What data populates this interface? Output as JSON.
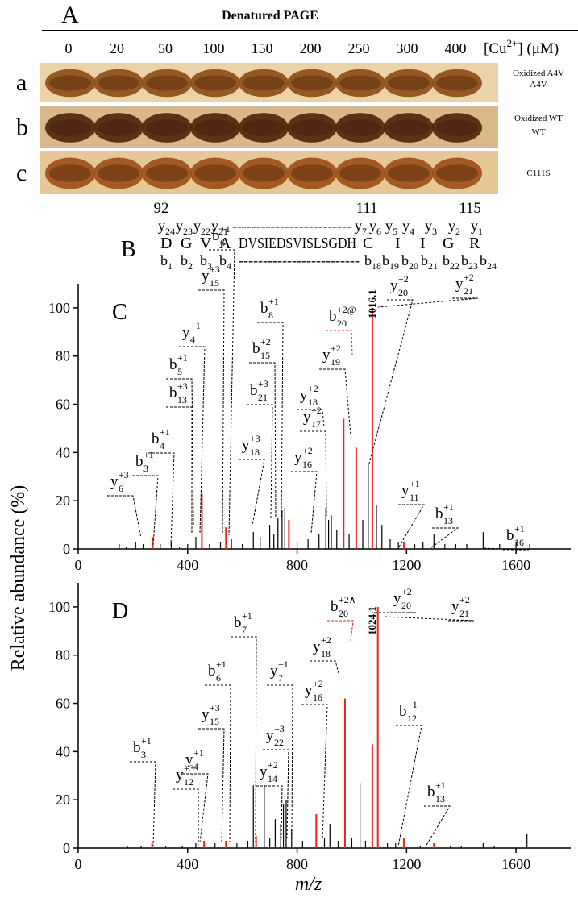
{
  "panel_a": {
    "label": "A",
    "title": "Denatured PAGE",
    "concentrations": [
      0,
      20,
      50,
      100,
      150,
      200,
      250,
      300,
      400
    ],
    "unit": {
      "pre": "[Cu",
      "sup": "2+",
      "post": "] (μM)"
    },
    "rows": [
      {
        "label": "a",
        "names": [
          "Oxidized A4V",
          "A4V"
        ]
      },
      {
        "label": "b",
        "names": [
          "Oxidized WT",
          "WT"
        ]
      },
      {
        "label": "c",
        "names": [
          "C111S"
        ]
      }
    ]
  },
  "panel_b": {
    "label": "B",
    "positions": [
      92,
      111,
      115
    ],
    "position_colors": [
      "#000000",
      "#e8231e",
      "#000000"
    ],
    "y_ions": [
      {
        "ion": "y",
        "sub": "24"
      },
      {
        "ion": "y",
        "sub": "23"
      },
      {
        "ion": "y",
        "sub": "22"
      },
      {
        "ion": "y",
        "sub": "21"
      },
      {
        "ion": "-------------------------"
      },
      {
        "ion": "y",
        "sub": "7"
      },
      {
        "ion": "y",
        "sub": "6"
      },
      {
        "ion": "y",
        "sub": "5",
        "color": "#e8231e"
      },
      {
        "ion": "y",
        "sub": "4"
      },
      {
        "ion": "y",
        "sub": "3"
      },
      {
        "ion": "y",
        "sub": "2"
      },
      {
        "ion": "y",
        "sub": "1"
      }
    ],
    "sequence": [
      {
        "ion": "D"
      },
      {
        "ion": "G"
      },
      {
        "ion": "V"
      },
      {
        "ion": "A"
      },
      {
        "ion": "DVSIEDSVISLSGDH"
      },
      {
        "ion": "C",
        "color": "#e8231e"
      },
      {
        "ion": "I"
      },
      {
        "ion": "I"
      },
      {
        "ion": "G"
      },
      {
        "ion": "R"
      }
    ],
    "b_ions": [
      {
        "ion": "b",
        "sub": "1"
      },
      {
        "ion": "b",
        "sub": "2"
      },
      {
        "ion": "b",
        "sub": "3"
      },
      {
        "ion": "b",
        "sub": "4"
      },
      {
        "ion": "-------------------------"
      },
      {
        "ion": "b",
        "sub": "18"
      },
      {
        "ion": "b",
        "sub": "19"
      },
      {
        "ion": "b",
        "sub": "20",
        "color": "#e8231e"
      },
      {
        "ion": "b",
        "sub": "21"
      },
      {
        "ion": "b",
        "sub": "22"
      },
      {
        "ion": "b",
        "sub": "23"
      },
      {
        "ion": "b",
        "sub": "24"
      }
    ]
  },
  "chart_data": [
    {
      "type": "bar",
      "panel": "C",
      "ylabel": "Relative abundance (%)",
      "x": [
        150,
        175,
        210,
        240,
        272,
        300,
        340,
        370,
        400,
        430,
        452,
        480,
        520,
        540,
        560,
        600,
        640,
        665,
        700,
        715,
        730,
        745,
        755,
        770,
        800,
        840,
        880,
        905,
        915,
        925,
        945,
        970,
        990,
        1016,
        1040,
        1060,
        1075,
        1090,
        1110,
        1140,
        1170,
        1190,
        1230,
        1260,
        1300,
        1340,
        1380,
        1420,
        1480,
        1540,
        1600,
        1650
      ],
      "values": [
        2,
        1,
        3,
        2,
        5,
        2,
        3,
        1,
        2,
        5,
        23,
        2,
        3,
        9,
        4,
        2,
        7,
        5,
        10,
        6,
        13,
        16,
        17,
        12,
        3,
        4,
        6,
        17,
        12,
        14,
        8,
        54,
        6,
        42,
        12,
        35,
        100,
        18,
        10,
        4,
        3,
        3,
        2,
        3,
        6,
        2,
        2,
        2,
        7,
        2,
        3,
        2
      ],
      "colors": [
        "#000000",
        "#000000",
        "#000000",
        "#000000",
        "#e8231e",
        "#000000",
        "#000000",
        "#000000",
        "#000000",
        "#000000",
        "#e8231e",
        "#000000",
        "#000000",
        "#e8231e",
        "#000000",
        "#000000",
        "#000000",
        "#000000",
        "#000000",
        "#000000",
        "#000000",
        "#000000",
        "#000000",
        "#e8231e",
        "#000000",
        "#000000",
        "#000000",
        "#000000",
        "#000000",
        "#000000",
        "#000000",
        "#e8231e",
        "#000000",
        "#e8231e",
        "#000000",
        "#000000",
        "#e8231e",
        "#000000",
        "#000000",
        "#000000",
        "#000000",
        "#e8231e",
        "#000000",
        "#000000",
        "#000000",
        "#000000",
        "#000000",
        "#000000",
        "#000000",
        "#000000",
        "#000000",
        "#000000"
      ],
      "xlim": [
        0,
        1800
      ],
      "xticks": [
        0,
        400,
        800,
        1200,
        1600
      ],
      "ylim": [
        0,
        110
      ],
      "yticks": [
        0,
        20,
        40,
        60,
        80,
        100
      ],
      "annotations": [
        {
          "ion": "y",
          "sub": "6",
          "sup": "+3"
        },
        {
          "ion": "b",
          "sub": "3",
          "sup": "+1"
        },
        {
          "ion": "b",
          "sub": "4",
          "sup": "+1"
        },
        {
          "ion": "b",
          "sub": "13",
          "sup": "+3"
        },
        {
          "ion": "b",
          "sub": "5",
          "sup": "+1"
        },
        {
          "ion": "y",
          "sub": "4",
          "sup": "+1"
        },
        {
          "ion": "y",
          "sub": "15",
          "sup": "+3"
        },
        {
          "ion": "b",
          "sub": "6",
          "sup": "+1"
        },
        {
          "ion": "y",
          "sub": "18",
          "sup": "+3"
        },
        {
          "ion": "b",
          "sub": "21",
          "sup": "+3"
        },
        {
          "ion": "b",
          "sub": "15",
          "sup": "+2"
        },
        {
          "ion": "b",
          "sub": "8",
          "sup": "+1"
        },
        {
          "ion": "y",
          "sub": "16",
          "sup": "+2"
        },
        {
          "ion": "y",
          "sub": "17",
          "sup": "+2"
        },
        {
          "ion": "y",
          "sub": "18",
          "sup": "+2"
        },
        {
          "ion": "y",
          "sub": "19",
          "sup": "+2"
        },
        {
          "ion": "b",
          "sub": "20",
          "sup": "+2@",
          "color": "#e8231e"
        },
        {
          "text": "1016.1",
          "color": "#e8231e"
        },
        {
          "ion": "y",
          "sub": "20",
          "sup": "+2"
        },
        {
          "ion": "y",
          "sub": "21",
          "sup": "+2"
        },
        {
          "ion": "y",
          "sub": "11",
          "sup": "+1"
        },
        {
          "ion": "b",
          "sub": "13",
          "sup": "+1"
        },
        {
          "ion": "b",
          "sub": "16",
          "sup": "+1"
        }
      ]
    },
    {
      "type": "bar",
      "panel": "D",
      "xlabel": "m/z",
      "x": [
        180,
        230,
        270,
        320,
        380,
        430,
        460,
        500,
        540,
        580,
        620,
        640,
        650,
        680,
        700,
        720,
        740,
        750,
        760,
        780,
        820,
        870,
        900,
        920,
        950,
        975,
        1000,
        1030,
        1050,
        1075,
        1095,
        1130,
        1160,
        1190,
        1250,
        1300,
        1360,
        1400,
        1480,
        1520,
        1640
      ],
      "values": [
        1,
        1,
        2,
        1,
        1,
        2,
        3,
        2,
        3,
        2,
        3,
        26,
        5,
        26,
        4,
        12,
        10,
        18,
        20,
        8,
        3,
        14,
        4,
        10,
        3,
        62,
        4,
        27,
        3,
        43,
        100,
        2,
        2,
        4,
        1,
        2,
        1,
        1,
        2,
        1,
        6
      ],
      "colors": [
        "#000000",
        "#000000",
        "#e8231e",
        "#000000",
        "#000000",
        "#000000",
        "#e8231e",
        "#000000",
        "#e8231e",
        "#000000",
        "#000000",
        "#000000",
        "#e8231e",
        "#000000",
        "#000000",
        "#000000",
        "#000000",
        "#000000",
        "#000000",
        "#000000",
        "#000000",
        "#e8231e",
        "#000000",
        "#000000",
        "#000000",
        "#e8231e",
        "#000000",
        "#000000",
        "#000000",
        "#e8231e",
        "#e8231e",
        "#000000",
        "#000000",
        "#e8231e",
        "#000000",
        "#e8231e",
        "#000000",
        "#000000",
        "#000000",
        "#000000",
        "#000000"
      ],
      "xlim": [
        0,
        1800
      ],
      "xticks": [
        0,
        400,
        800,
        1200,
        1600
      ],
      "ylim": [
        0,
        110
      ],
      "yticks": [
        0,
        20,
        40,
        60,
        80,
        100
      ],
      "annotations": [
        {
          "ion": "b",
          "sub": "3",
          "sup": "+1"
        },
        {
          "ion": "y",
          "sub": "12",
          "sup": "+3"
        },
        {
          "ion": "y",
          "sub": "4",
          "sup": "+1"
        },
        {
          "ion": "y",
          "sub": "15",
          "sup": "+3"
        },
        {
          "ion": "b",
          "sub": "6",
          "sup": "+1"
        },
        {
          "ion": "b",
          "sub": "7",
          "sup": "+1"
        },
        {
          "ion": "y",
          "sub": "22",
          "sup": "+3"
        },
        {
          "ion": "y",
          "sub": "14",
          "sup": "+2"
        },
        {
          "ion": "y",
          "sub": "7",
          "sup": "+1"
        },
        {
          "ion": "y",
          "sub": "16",
          "sup": "+2"
        },
        {
          "ion": "y",
          "sub": "18",
          "sup": "+2"
        },
        {
          "ion": "b",
          "sub": "20",
          "sup": "+2∧",
          "color": "#e8231e"
        },
        {
          "text": "1024.1",
          "color": "#e8231e"
        },
        {
          "ion": "y",
          "sub": "20",
          "sup": "+2"
        },
        {
          "ion": "y",
          "sub": "21",
          "sup": "+2"
        },
        {
          "ion": "b",
          "sub": "12",
          "sup": "+1"
        },
        {
          "ion": "b",
          "sub": "13",
          "sup": "+1"
        }
      ]
    }
  ]
}
